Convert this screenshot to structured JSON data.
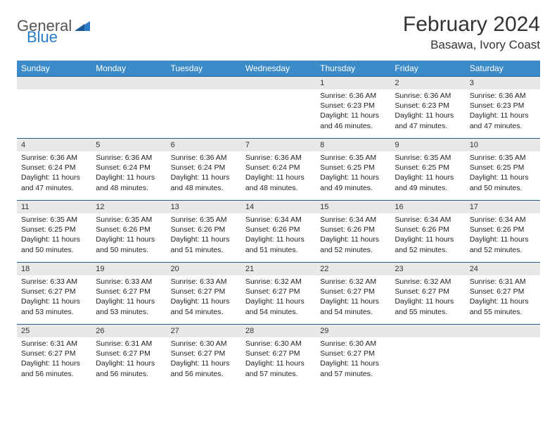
{
  "logo": {
    "general": "General",
    "blue": "Blue",
    "icon_color": "#2a7cc4"
  },
  "header": {
    "month": "February 2024",
    "location": "Basawa, Ivory Coast"
  },
  "colors": {
    "header_bg": "#3b8bc9",
    "header_text": "#ffffff",
    "daynum_bg": "#e8e8e8",
    "row_border": "#2a5d8a"
  },
  "weekdays": [
    "Sunday",
    "Monday",
    "Tuesday",
    "Wednesday",
    "Thursday",
    "Friday",
    "Saturday"
  ],
  "weeks": [
    [
      null,
      null,
      null,
      null,
      {
        "n": "1",
        "sr": "Sunrise: 6:36 AM",
        "ss": "Sunset: 6:23 PM",
        "dl": "Daylight: 11 hours and 46 minutes."
      },
      {
        "n": "2",
        "sr": "Sunrise: 6:36 AM",
        "ss": "Sunset: 6:23 PM",
        "dl": "Daylight: 11 hours and 47 minutes."
      },
      {
        "n": "3",
        "sr": "Sunrise: 6:36 AM",
        "ss": "Sunset: 6:23 PM",
        "dl": "Daylight: 11 hours and 47 minutes."
      }
    ],
    [
      {
        "n": "4",
        "sr": "Sunrise: 6:36 AM",
        "ss": "Sunset: 6:24 PM",
        "dl": "Daylight: 11 hours and 47 minutes."
      },
      {
        "n": "5",
        "sr": "Sunrise: 6:36 AM",
        "ss": "Sunset: 6:24 PM",
        "dl": "Daylight: 11 hours and 48 minutes."
      },
      {
        "n": "6",
        "sr": "Sunrise: 6:36 AM",
        "ss": "Sunset: 6:24 PM",
        "dl": "Daylight: 11 hours and 48 minutes."
      },
      {
        "n": "7",
        "sr": "Sunrise: 6:36 AM",
        "ss": "Sunset: 6:24 PM",
        "dl": "Daylight: 11 hours and 48 minutes."
      },
      {
        "n": "8",
        "sr": "Sunrise: 6:35 AM",
        "ss": "Sunset: 6:25 PM",
        "dl": "Daylight: 11 hours and 49 minutes."
      },
      {
        "n": "9",
        "sr": "Sunrise: 6:35 AM",
        "ss": "Sunset: 6:25 PM",
        "dl": "Daylight: 11 hours and 49 minutes."
      },
      {
        "n": "10",
        "sr": "Sunrise: 6:35 AM",
        "ss": "Sunset: 6:25 PM",
        "dl": "Daylight: 11 hours and 50 minutes."
      }
    ],
    [
      {
        "n": "11",
        "sr": "Sunrise: 6:35 AM",
        "ss": "Sunset: 6:25 PM",
        "dl": "Daylight: 11 hours and 50 minutes."
      },
      {
        "n": "12",
        "sr": "Sunrise: 6:35 AM",
        "ss": "Sunset: 6:26 PM",
        "dl": "Daylight: 11 hours and 50 minutes."
      },
      {
        "n": "13",
        "sr": "Sunrise: 6:35 AM",
        "ss": "Sunset: 6:26 PM",
        "dl": "Daylight: 11 hours and 51 minutes."
      },
      {
        "n": "14",
        "sr": "Sunrise: 6:34 AM",
        "ss": "Sunset: 6:26 PM",
        "dl": "Daylight: 11 hours and 51 minutes."
      },
      {
        "n": "15",
        "sr": "Sunrise: 6:34 AM",
        "ss": "Sunset: 6:26 PM",
        "dl": "Daylight: 11 hours and 52 minutes."
      },
      {
        "n": "16",
        "sr": "Sunrise: 6:34 AM",
        "ss": "Sunset: 6:26 PM",
        "dl": "Daylight: 11 hours and 52 minutes."
      },
      {
        "n": "17",
        "sr": "Sunrise: 6:34 AM",
        "ss": "Sunset: 6:26 PM",
        "dl": "Daylight: 11 hours and 52 minutes."
      }
    ],
    [
      {
        "n": "18",
        "sr": "Sunrise: 6:33 AM",
        "ss": "Sunset: 6:27 PM",
        "dl": "Daylight: 11 hours and 53 minutes."
      },
      {
        "n": "19",
        "sr": "Sunrise: 6:33 AM",
        "ss": "Sunset: 6:27 PM",
        "dl": "Daylight: 11 hours and 53 minutes."
      },
      {
        "n": "20",
        "sr": "Sunrise: 6:33 AM",
        "ss": "Sunset: 6:27 PM",
        "dl": "Daylight: 11 hours and 54 minutes."
      },
      {
        "n": "21",
        "sr": "Sunrise: 6:32 AM",
        "ss": "Sunset: 6:27 PM",
        "dl": "Daylight: 11 hours and 54 minutes."
      },
      {
        "n": "22",
        "sr": "Sunrise: 6:32 AM",
        "ss": "Sunset: 6:27 PM",
        "dl": "Daylight: 11 hours and 54 minutes."
      },
      {
        "n": "23",
        "sr": "Sunrise: 6:32 AM",
        "ss": "Sunset: 6:27 PM",
        "dl": "Daylight: 11 hours and 55 minutes."
      },
      {
        "n": "24",
        "sr": "Sunrise: 6:31 AM",
        "ss": "Sunset: 6:27 PM",
        "dl": "Daylight: 11 hours and 55 minutes."
      }
    ],
    [
      {
        "n": "25",
        "sr": "Sunrise: 6:31 AM",
        "ss": "Sunset: 6:27 PM",
        "dl": "Daylight: 11 hours and 56 minutes."
      },
      {
        "n": "26",
        "sr": "Sunrise: 6:31 AM",
        "ss": "Sunset: 6:27 PM",
        "dl": "Daylight: 11 hours and 56 minutes."
      },
      {
        "n": "27",
        "sr": "Sunrise: 6:30 AM",
        "ss": "Sunset: 6:27 PM",
        "dl": "Daylight: 11 hours and 56 minutes."
      },
      {
        "n": "28",
        "sr": "Sunrise: 6:30 AM",
        "ss": "Sunset: 6:27 PM",
        "dl": "Daylight: 11 hours and 57 minutes."
      },
      {
        "n": "29",
        "sr": "Sunrise: 6:30 AM",
        "ss": "Sunset: 6:27 PM",
        "dl": "Daylight: 11 hours and 57 minutes."
      },
      null,
      null
    ]
  ]
}
